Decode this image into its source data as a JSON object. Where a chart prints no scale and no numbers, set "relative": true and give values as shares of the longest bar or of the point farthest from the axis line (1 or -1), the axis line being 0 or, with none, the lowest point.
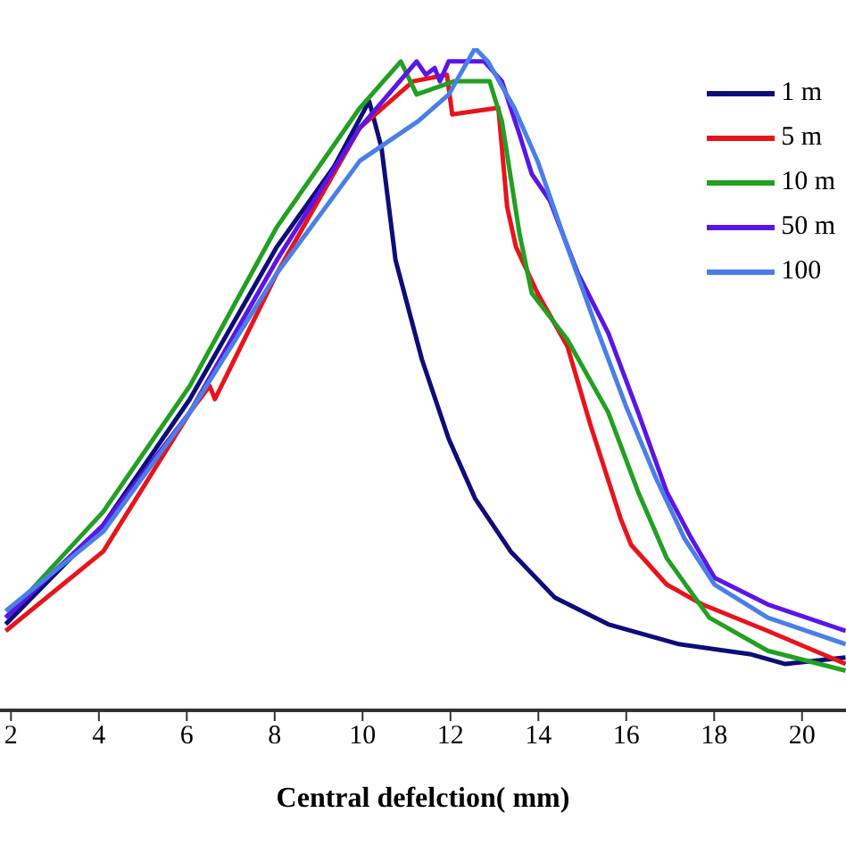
{
  "chart_data": {
    "type": "line",
    "relative": true,
    "xlabel": "Central defelction( mm)",
    "xlim": [
      1.75,
      21
    ],
    "xticks": [
      2,
      4,
      6,
      8,
      10,
      12,
      14,
      16,
      18,
      20
    ],
    "legend": "top right",
    "grid": false,
    "marker": "none",
    "line_style": "solid",
    "series": [
      {
        "name": "1 m",
        "color": "#0d0d7a",
        "x": [
          1.88,
          4.1,
          6.07,
          8.05,
          9.34,
          10.15,
          10.43,
          10.75,
          11.35,
          11.96,
          12.56,
          13.37,
          14.38,
          15.59,
          17.2,
          18.81,
          19.62,
          20.99
        ],
        "values": [
          0.13,
          0.28,
          0.47,
          0.7,
          0.82,
          0.92,
          0.85,
          0.68,
          0.53,
          0.41,
          0.32,
          0.24,
          0.17,
          0.13,
          0.1,
          0.085,
          0.07,
          0.08
        ]
      },
      {
        "name": "5 m",
        "color": "#e8141c",
        "x": [
          1.88,
          4.1,
          6.07,
          6.52,
          6.64,
          8.05,
          9.94,
          11.15,
          11.92,
          12.04,
          13.09,
          13.29,
          13.49,
          13.98,
          14.66,
          15.19,
          15.87,
          16.11,
          16.92,
          17.73,
          19.22,
          20.99
        ],
        "values": [
          0.12,
          0.24,
          0.45,
          0.49,
          0.47,
          0.66,
          0.88,
          0.95,
          0.96,
          0.9,
          0.91,
          0.76,
          0.7,
          0.63,
          0.55,
          0.43,
          0.29,
          0.25,
          0.19,
          0.16,
          0.12,
          0.07
        ]
      },
      {
        "name": "10 m",
        "color": "#22a022",
        "x": [
          1.88,
          4.1,
          6.07,
          8.05,
          9.94,
          10.87,
          11.23,
          12.08,
          12.89,
          13.17,
          13.57,
          13.85,
          14.66,
          15.59,
          16.27,
          16.92,
          17.89,
          19.22,
          20.99
        ],
        "values": [
          0.14,
          0.3,
          0.49,
          0.73,
          0.91,
          0.98,
          0.93,
          0.95,
          0.95,
          0.89,
          0.72,
          0.63,
          0.56,
          0.45,
          0.33,
          0.23,
          0.14,
          0.09,
          0.06
        ]
      },
      {
        "name": "50 m",
        "color": "#5b16e6",
        "x": [
          1.88,
          4.1,
          6.07,
          8.05,
          9.94,
          11.23,
          11.44,
          11.64,
          11.76,
          11.96,
          12.77,
          13.17,
          13.57,
          13.85,
          14.26,
          14.9,
          15.59,
          16.27,
          16.92,
          17.48,
          18.01,
          19.22,
          20.99
        ],
        "values": [
          0.14,
          0.28,
          0.45,
          0.68,
          0.88,
          0.98,
          0.96,
          0.97,
          0.95,
          0.98,
          0.98,
          0.95,
          0.87,
          0.81,
          0.77,
          0.66,
          0.57,
          0.45,
          0.33,
          0.26,
          0.2,
          0.16,
          0.12
        ]
      },
      {
        "name": "100",
        "color": "#4a7fe8",
        "x": [
          1.88,
          4.1,
          6.07,
          8.05,
          9.94,
          11.27,
          11.96,
          12.56,
          12.85,
          13.45,
          13.98,
          14.66,
          15.31,
          15.99,
          16.68,
          17.32,
          18.01,
          19.22,
          20.99
        ],
        "values": [
          0.15,
          0.27,
          0.45,
          0.66,
          0.83,
          0.89,
          0.93,
          1,
          0.98,
          0.91,
          0.83,
          0.7,
          0.58,
          0.46,
          0.35,
          0.26,
          0.19,
          0.14,
          0.1
        ]
      }
    ]
  }
}
